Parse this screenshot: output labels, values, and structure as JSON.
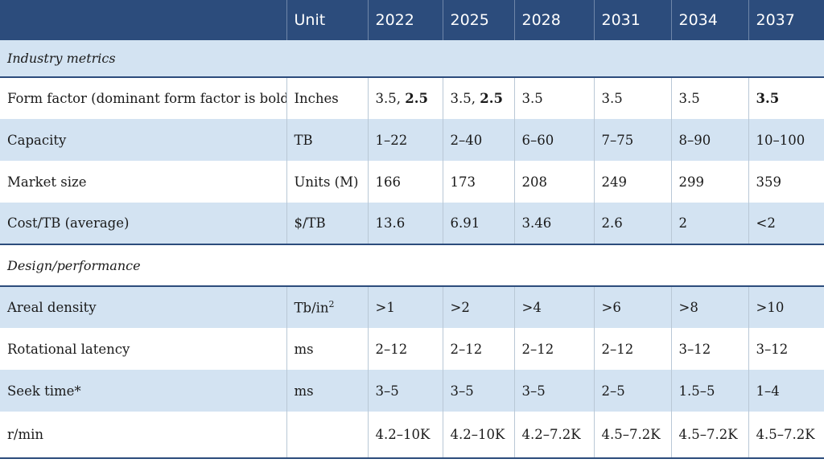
{
  "header": [
    "",
    "Unit",
    "2022",
    "2025",
    "2028",
    "2031",
    "2034",
    "2037"
  ],
  "sections": {
    "industry": "Industry metrics",
    "design": "Design/performance"
  },
  "form_factor": {
    "label": "Form factor (dominant form factor is bold)",
    "unit": "Inches",
    "cells": [
      {
        "plain": "3.5, ",
        "bold": "2.5"
      },
      {
        "plain": "3.5, ",
        "bold": "2.5"
      },
      {
        "plain": "3.5",
        "bold": ""
      },
      {
        "plain": "3.5",
        "bold": ""
      },
      {
        "plain": "3.5",
        "bold": ""
      },
      {
        "plain": "",
        "bold": "3.5"
      }
    ]
  },
  "rows_industry": [
    {
      "label": "Capacity",
      "unit": "TB",
      "values": [
        "1–22",
        "2–40",
        "6–60",
        "7–75",
        "8–90",
        "10–100"
      ]
    },
    {
      "label": "Market size",
      "unit": "Units (M)",
      "values": [
        "166",
        "173",
        "208",
        "249",
        "299",
        "359"
      ]
    },
    {
      "label": "Cost/TB (average)",
      "unit": "$/TB",
      "values": [
        "13.6",
        "6.91",
        "3.46",
        "2.6",
        "2",
        "<2"
      ]
    }
  ],
  "areal": {
    "label": "Areal density",
    "unit_base": "Tb/in",
    "unit_sup": "2",
    "values": [
      ">1",
      ">2",
      ">4",
      ">6",
      ">8",
      ">10"
    ]
  },
  "rows_design": [
    {
      "label": "Rotational latency",
      "unit": "ms",
      "values": [
        "2–12",
        "2–12",
        "2–12",
        "2–12",
        "3–12",
        "3–12"
      ]
    },
    {
      "label": "Seek time*",
      "unit": "ms",
      "values": [
        "3–5",
        "3–5",
        "3–5",
        "2–5",
        "1.5–5",
        "1–4"
      ]
    },
    {
      "label": "r/min",
      "unit": "",
      "values": [
        "4.2–10K",
        "4.2–10K",
        "4.2–7.2K",
        "4.5–7.2K",
        "4.5–7.2K",
        "4.5–7.2K"
      ]
    }
  ]
}
